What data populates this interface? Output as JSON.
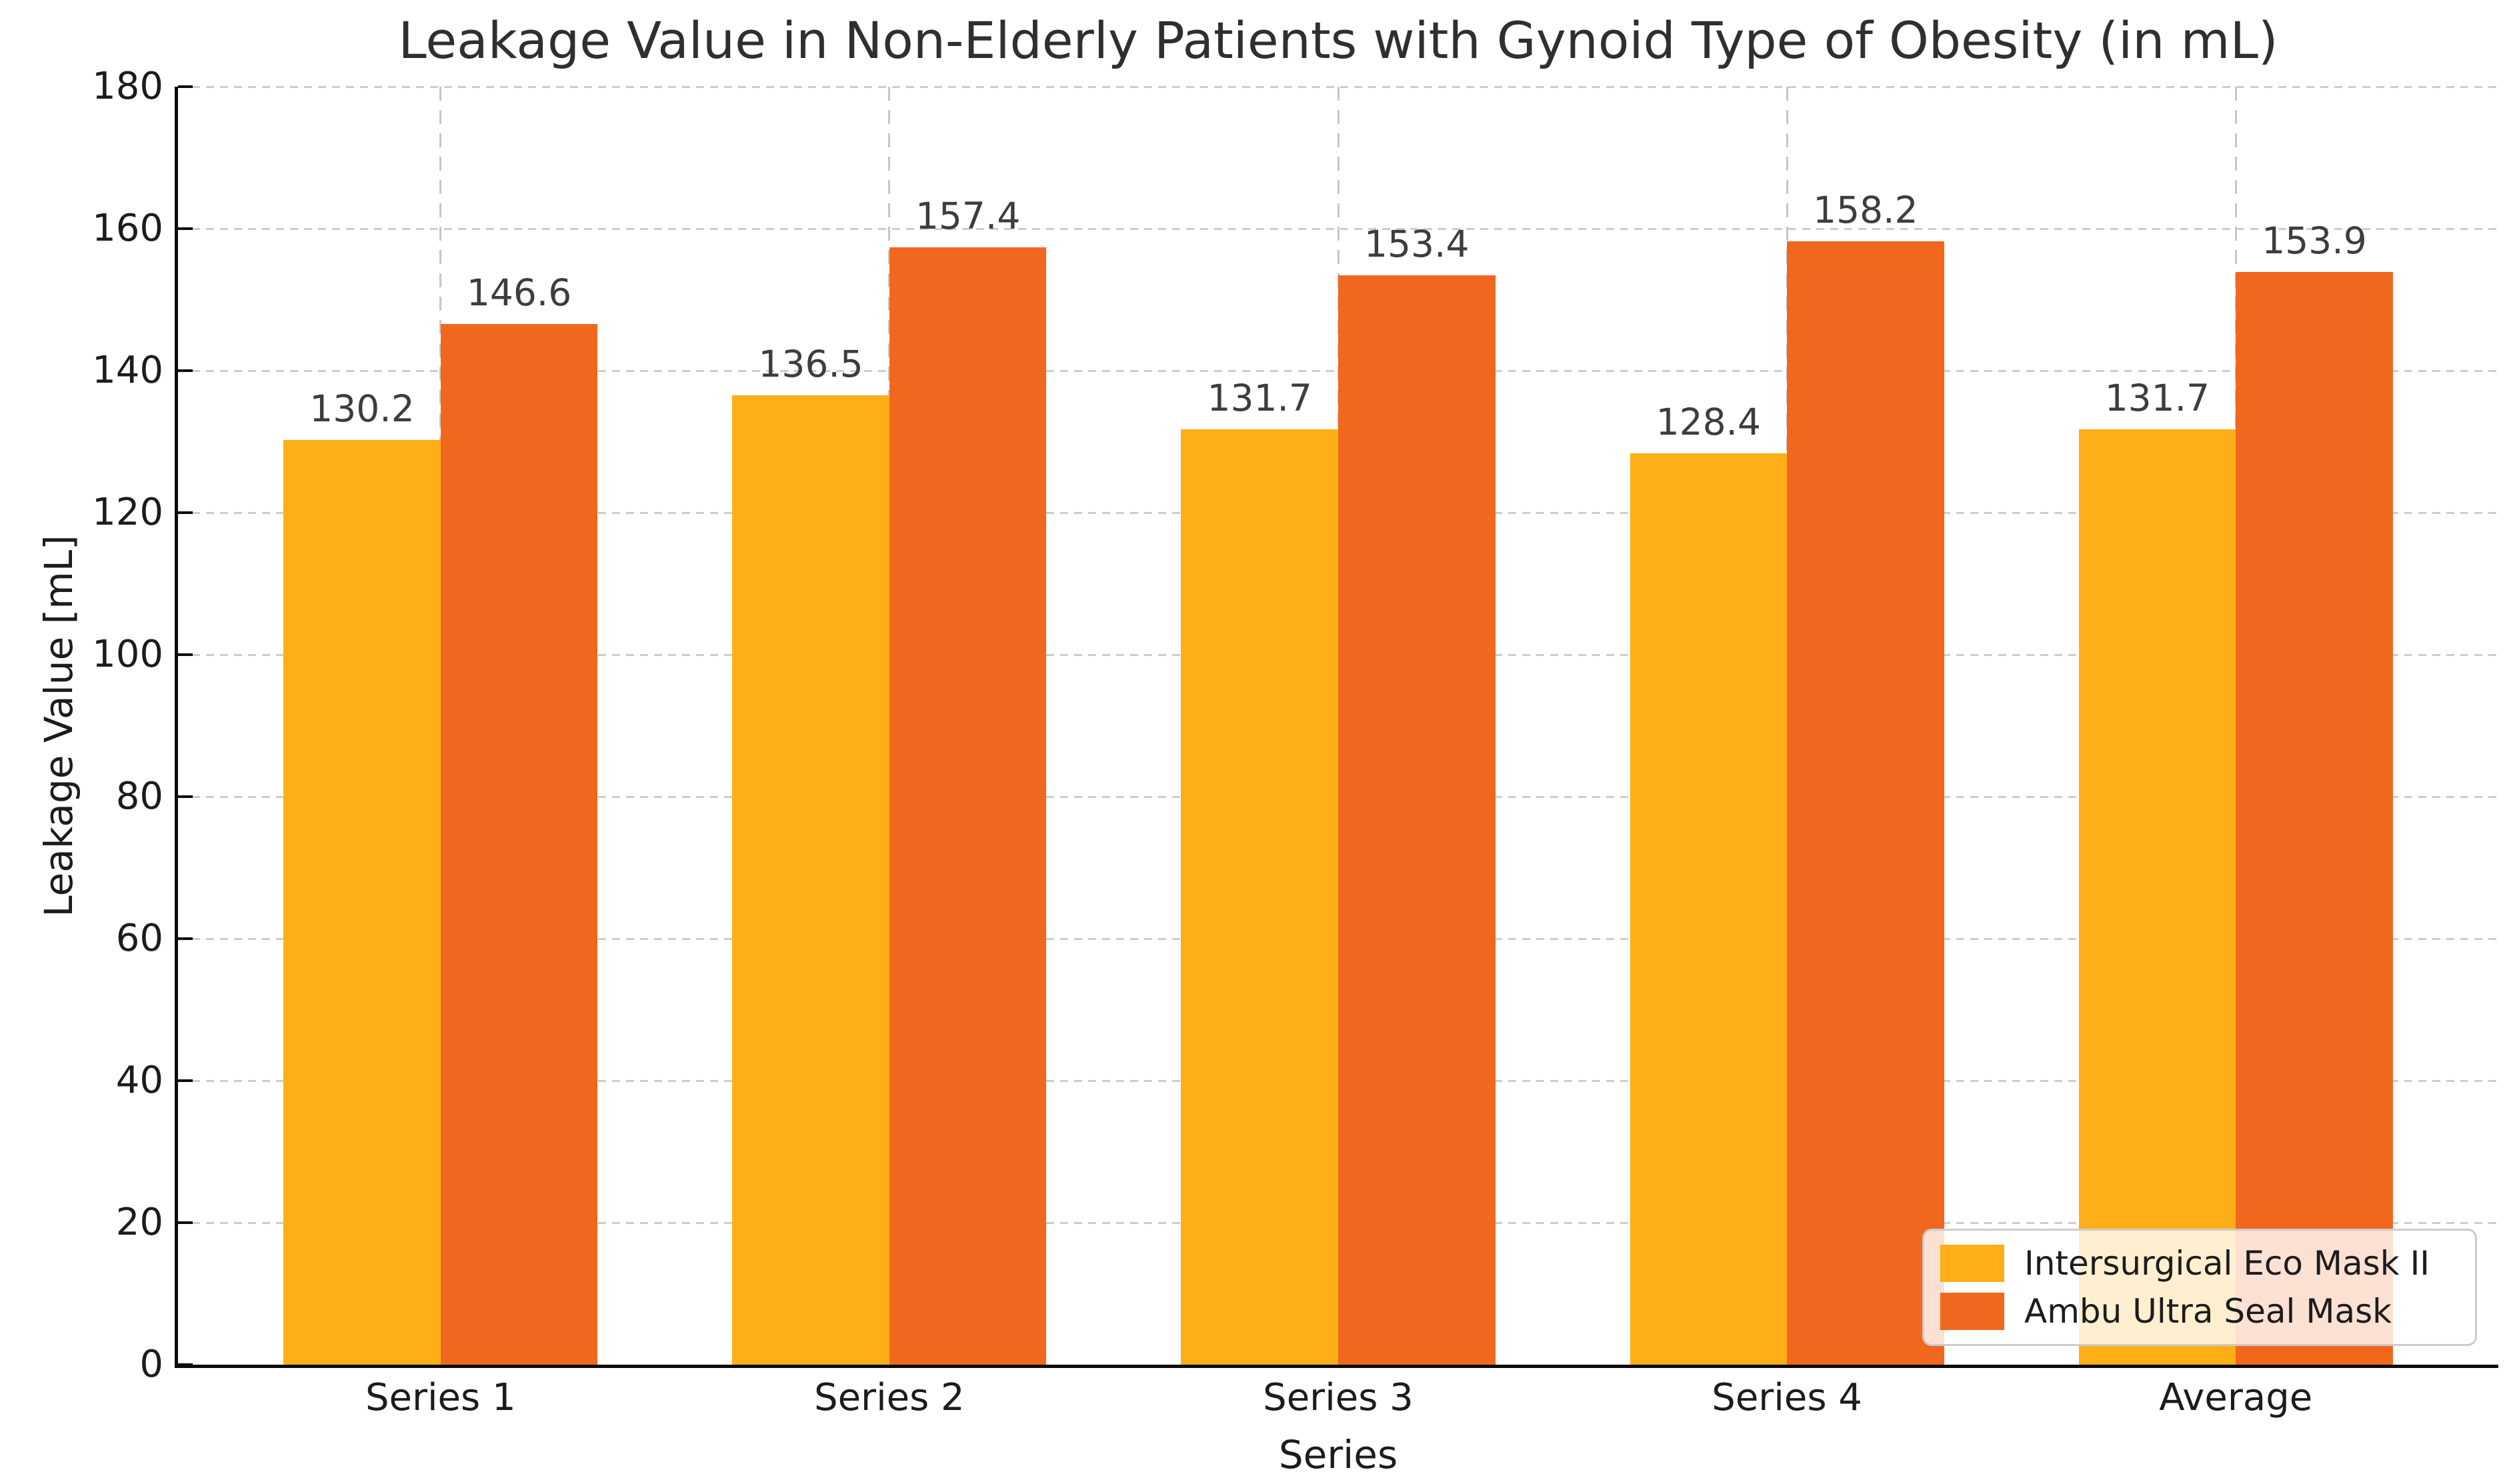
{
  "chart_data": {
    "type": "bar",
    "title": "Leakage Value in Non-Elderly Patients with Gynoid Type of Obesity (in mL)",
    "xlabel": "Series",
    "ylabel": "Leakage Value [mL]",
    "categories": [
      "Series 1",
      "Series 2",
      "Series 3",
      "Series 4",
      "Average"
    ],
    "series": [
      {
        "name": "Intersurgical Eco Mask II",
        "color": "#feae17",
        "values": [
          130.2,
          136.5,
          131.7,
          128.4,
          131.7
        ]
      },
      {
        "name": "Ambu Ultra Seal Mask",
        "color": "#f1671e",
        "values": [
          146.6,
          157.4,
          153.4,
          158.2,
          153.9
        ]
      }
    ],
    "ylim": [
      0,
      180
    ],
    "yticks": [
      0,
      20,
      40,
      60,
      80,
      100,
      120,
      140,
      160,
      180
    ],
    "grid": "dashed horizontal and vertical, light gray",
    "legend_position": "lower right",
    "bar_value_labels": true
  },
  "colors": {
    "background": "#ffffff",
    "spine": "#0b0b0b",
    "grid": "#cdcdcd",
    "title_text": "#2f2f2f",
    "tick_text": "#1c1c1c",
    "value_text": "#3d3d3d",
    "legend_border": "#cccccc"
  }
}
